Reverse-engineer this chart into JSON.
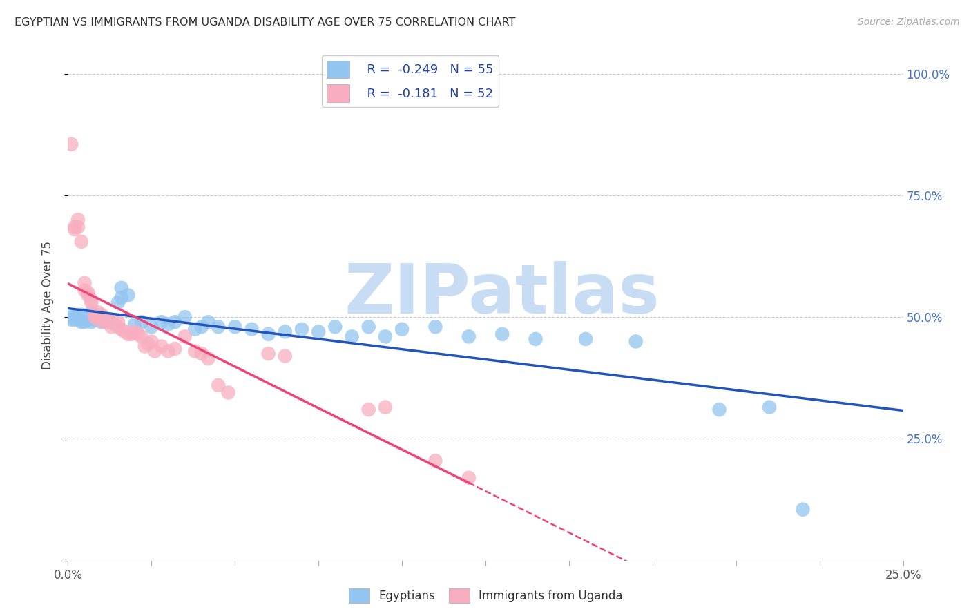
{
  "title": "EGYPTIAN VS IMMIGRANTS FROM UGANDA DISABILITY AGE OVER 75 CORRELATION CHART",
  "source": "Source: ZipAtlas.com",
  "ylabel": "Disability Age Over 75",
  "yticks": [
    0.0,
    0.25,
    0.5,
    0.75,
    1.0
  ],
  "ytick_labels_right": [
    "",
    "25.0%",
    "50.0%",
    "75.0%",
    "100.0%"
  ],
  "xlim": [
    0.0,
    0.25
  ],
  "ylim": [
    0.0,
    1.05
  ],
  "legend_r_blue": "R =  -0.249",
  "legend_n_blue": "N = 55",
  "legend_r_pink": "R =  -0.181",
  "legend_n_pink": "N = 52",
  "legend_label_blue": "Egyptians",
  "legend_label_pink": "Immigrants from Uganda",
  "blue_color": "#92C5F0",
  "pink_color": "#F8AEC0",
  "trend_blue_color": "#2255BB",
  "trend_pink_color": "#EE4477",
  "watermark_text": "ZIPatlas",
  "watermark_color": "#C8DCF4",
  "blue_scatter": [
    [
      0.001,
      0.495
    ],
    [
      0.001,
      0.5
    ],
    [
      0.002,
      0.495
    ],
    [
      0.002,
      0.5
    ],
    [
      0.003,
      0.495
    ],
    [
      0.003,
      0.5
    ],
    [
      0.004,
      0.49
    ],
    [
      0.004,
      0.505
    ],
    [
      0.005,
      0.49
    ],
    [
      0.005,
      0.5
    ],
    [
      0.006,
      0.495
    ],
    [
      0.006,
      0.5
    ],
    [
      0.007,
      0.49
    ],
    [
      0.007,
      0.51
    ],
    [
      0.008,
      0.495
    ],
    [
      0.009,
      0.495
    ],
    [
      0.01,
      0.49
    ],
    [
      0.011,
      0.495
    ],
    [
      0.012,
      0.49
    ],
    [
      0.013,
      0.49
    ],
    [
      0.015,
      0.53
    ],
    [
      0.016,
      0.54
    ],
    [
      0.016,
      0.56
    ],
    [
      0.018,
      0.545
    ],
    [
      0.02,
      0.485
    ],
    [
      0.022,
      0.49
    ],
    [
      0.025,
      0.48
    ],
    [
      0.028,
      0.49
    ],
    [
      0.03,
      0.485
    ],
    [
      0.032,
      0.49
    ],
    [
      0.035,
      0.5
    ],
    [
      0.038,
      0.475
    ],
    [
      0.04,
      0.48
    ],
    [
      0.042,
      0.49
    ],
    [
      0.045,
      0.48
    ],
    [
      0.05,
      0.48
    ],
    [
      0.055,
      0.475
    ],
    [
      0.06,
      0.465
    ],
    [
      0.065,
      0.47
    ],
    [
      0.07,
      0.475
    ],
    [
      0.075,
      0.47
    ],
    [
      0.08,
      0.48
    ],
    [
      0.085,
      0.46
    ],
    [
      0.09,
      0.48
    ],
    [
      0.095,
      0.46
    ],
    [
      0.1,
      0.475
    ],
    [
      0.11,
      0.48
    ],
    [
      0.12,
      0.46
    ],
    [
      0.13,
      0.465
    ],
    [
      0.14,
      0.455
    ],
    [
      0.155,
      0.455
    ],
    [
      0.17,
      0.45
    ],
    [
      0.195,
      0.31
    ],
    [
      0.21,
      0.315
    ],
    [
      0.22,
      0.105
    ]
  ],
  "pink_scatter": [
    [
      0.001,
      0.855
    ],
    [
      0.002,
      0.685
    ],
    [
      0.002,
      0.68
    ],
    [
      0.003,
      0.685
    ],
    [
      0.003,
      0.7
    ],
    [
      0.004,
      0.655
    ],
    [
      0.005,
      0.57
    ],
    [
      0.005,
      0.555
    ],
    [
      0.006,
      0.545
    ],
    [
      0.006,
      0.55
    ],
    [
      0.007,
      0.53
    ],
    [
      0.007,
      0.535
    ],
    [
      0.008,
      0.505
    ],
    [
      0.008,
      0.5
    ],
    [
      0.009,
      0.51
    ],
    [
      0.009,
      0.495
    ],
    [
      0.01,
      0.5
    ],
    [
      0.01,
      0.505
    ],
    [
      0.011,
      0.495
    ],
    [
      0.011,
      0.49
    ],
    [
      0.012,
      0.495
    ],
    [
      0.012,
      0.49
    ],
    [
      0.013,
      0.48
    ],
    [
      0.014,
      0.485
    ],
    [
      0.015,
      0.48
    ],
    [
      0.015,
      0.49
    ],
    [
      0.016,
      0.475
    ],
    [
      0.017,
      0.47
    ],
    [
      0.018,
      0.465
    ],
    [
      0.019,
      0.465
    ],
    [
      0.02,
      0.47
    ],
    [
      0.021,
      0.465
    ],
    [
      0.022,
      0.46
    ],
    [
      0.023,
      0.44
    ],
    [
      0.024,
      0.445
    ],
    [
      0.025,
      0.45
    ],
    [
      0.026,
      0.43
    ],
    [
      0.028,
      0.44
    ],
    [
      0.03,
      0.43
    ],
    [
      0.032,
      0.435
    ],
    [
      0.035,
      0.46
    ],
    [
      0.038,
      0.43
    ],
    [
      0.04,
      0.425
    ],
    [
      0.042,
      0.415
    ],
    [
      0.045,
      0.36
    ],
    [
      0.048,
      0.345
    ],
    [
      0.06,
      0.425
    ],
    [
      0.065,
      0.42
    ],
    [
      0.09,
      0.31
    ],
    [
      0.095,
      0.315
    ],
    [
      0.11,
      0.205
    ],
    [
      0.12,
      0.17
    ]
  ]
}
